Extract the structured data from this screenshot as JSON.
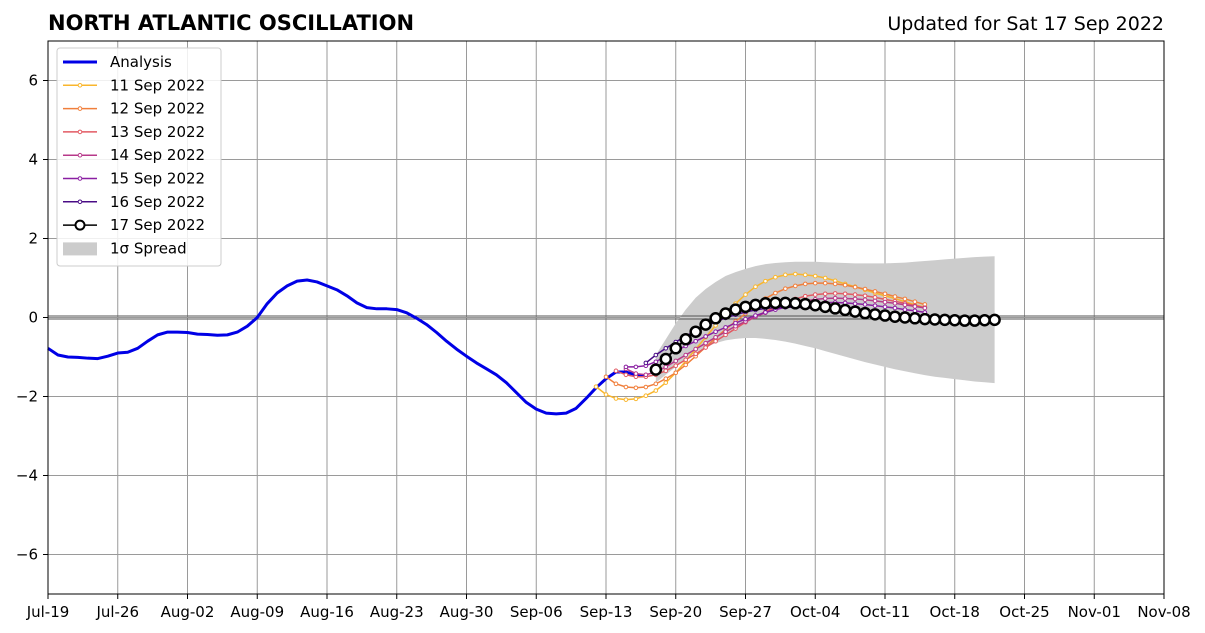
{
  "chart_data": {
    "type": "line",
    "title": "NORTH ATLANTIC OSCILLATION",
    "subtitle": "Updated for Sat 17 Sep 2022",
    "xlabel": "",
    "ylabel": "",
    "x_range": [
      "2022-07-19",
      "2022-11-08"
    ],
    "ylim": [
      -7,
      7
    ],
    "x_tick_labels": [
      "Jul-19",
      "Jul-26",
      "Aug-02",
      "Aug-09",
      "Aug-16",
      "Aug-23",
      "Aug-30",
      "Sep-06",
      "Sep-13",
      "Sep-20",
      "Sep-27",
      "Oct-04",
      "Oct-11",
      "Oct-18",
      "Oct-25",
      "Nov-01",
      "Nov-08"
    ],
    "x_tick_dates": [
      "2022-07-19",
      "2022-07-26",
      "2022-08-02",
      "2022-08-09",
      "2022-08-16",
      "2022-08-23",
      "2022-08-30",
      "2022-09-06",
      "2022-09-13",
      "2022-09-20",
      "2022-09-27",
      "2022-10-04",
      "2022-10-11",
      "2022-10-18",
      "2022-10-25",
      "2022-11-01",
      "2022-11-08"
    ],
    "y_ticks": [
      -6,
      -4,
      -2,
      0,
      2,
      4,
      6
    ],
    "y_tick_labels": [
      "−6",
      "−4",
      "−2",
      "0",
      "2",
      "4",
      "6"
    ],
    "grid": true,
    "legend_position": "top-left",
    "colors": {
      "analysis": "#0000e6",
      "spread": "#cccccc",
      "zero_line": "#555555"
    },
    "analysis": {
      "name": "Analysis",
      "points": [
        [
          "2022-07-19",
          -0.78
        ],
        [
          "2022-07-20",
          -0.95
        ],
        [
          "2022-07-21",
          -1.0
        ],
        [
          "2022-07-22",
          -1.01
        ],
        [
          "2022-07-23",
          -1.03
        ],
        [
          "2022-07-24",
          -1.04
        ],
        [
          "2022-07-25",
          -0.98
        ],
        [
          "2022-07-26",
          -0.9
        ],
        [
          "2022-07-27",
          -0.88
        ],
        [
          "2022-07-28",
          -0.78
        ],
        [
          "2022-07-29",
          -0.6
        ],
        [
          "2022-07-30",
          -0.44
        ],
        [
          "2022-07-31",
          -0.37
        ],
        [
          "2022-08-01",
          -0.37
        ],
        [
          "2022-08-02",
          -0.38
        ],
        [
          "2022-08-03",
          -0.42
        ],
        [
          "2022-08-04",
          -0.43
        ],
        [
          "2022-08-05",
          -0.45
        ],
        [
          "2022-08-06",
          -0.44
        ],
        [
          "2022-08-07",
          -0.37
        ],
        [
          "2022-08-08",
          -0.22
        ],
        [
          "2022-08-09",
          0.0
        ],
        [
          "2022-08-10",
          0.35
        ],
        [
          "2022-08-11",
          0.62
        ],
        [
          "2022-08-12",
          0.8
        ],
        [
          "2022-08-13",
          0.92
        ],
        [
          "2022-08-14",
          0.95
        ],
        [
          "2022-08-15",
          0.9
        ],
        [
          "2022-08-16",
          0.8
        ],
        [
          "2022-08-17",
          0.7
        ],
        [
          "2022-08-18",
          0.55
        ],
        [
          "2022-08-19",
          0.37
        ],
        [
          "2022-08-20",
          0.25
        ],
        [
          "2022-08-21",
          0.22
        ],
        [
          "2022-08-22",
          0.22
        ],
        [
          "2022-08-23",
          0.2
        ],
        [
          "2022-08-24",
          0.12
        ],
        [
          "2022-08-25",
          -0.02
        ],
        [
          "2022-08-26",
          -0.18
        ],
        [
          "2022-08-27",
          -0.38
        ],
        [
          "2022-08-28",
          -0.6
        ],
        [
          "2022-08-29",
          -0.8
        ],
        [
          "2022-08-30",
          -0.98
        ],
        [
          "2022-08-31",
          -1.15
        ],
        [
          "2022-09-01",
          -1.3
        ],
        [
          "2022-09-02",
          -1.45
        ],
        [
          "2022-09-03",
          -1.65
        ],
        [
          "2022-09-04",
          -1.9
        ],
        [
          "2022-09-05",
          -2.15
        ],
        [
          "2022-09-06",
          -2.32
        ],
        [
          "2022-09-07",
          -2.42
        ],
        [
          "2022-09-08",
          -2.44
        ],
        [
          "2022-09-09",
          -2.42
        ],
        [
          "2022-09-10",
          -2.3
        ],
        [
          "2022-09-11",
          -2.05
        ],
        [
          "2022-09-12",
          -1.78
        ],
        [
          "2022-09-13",
          -1.55
        ],
        [
          "2022-09-14",
          -1.38
        ],
        [
          "2022-09-15",
          -1.38
        ],
        [
          "2022-09-16",
          -1.45
        ],
        [
          "2022-09-17",
          -1.48
        ]
      ]
    },
    "series": [
      {
        "name": "11 Sep 2022",
        "color": "#f9b62d",
        "start": "2022-09-12",
        "values": [
          -1.75,
          -1.95,
          -2.05,
          -2.08,
          -2.06,
          -1.98,
          -1.85,
          -1.65,
          -1.4,
          -1.1,
          -0.8,
          -0.5,
          -0.2,
          0.1,
          0.35,
          0.58,
          0.78,
          0.92,
          1.02,
          1.08,
          1.1,
          1.08,
          1.05,
          1.0,
          0.93,
          0.85,
          0.78,
          0.7,
          0.62,
          0.55,
          0.48,
          0.4,
          0.32,
          0.26
        ]
      },
      {
        "name": "12 Sep 2022",
        "color": "#f07f3c",
        "start": "2022-09-13",
        "values": [
          -1.5,
          -1.68,
          -1.76,
          -1.78,
          -1.76,
          -1.68,
          -1.55,
          -1.4,
          -1.2,
          -0.98,
          -0.75,
          -0.52,
          -0.3,
          -0.1,
          0.1,
          0.3,
          0.48,
          0.62,
          0.73,
          0.8,
          0.85,
          0.87,
          0.87,
          0.85,
          0.82,
          0.77,
          0.72,
          0.66,
          0.6,
          0.53,
          0.47,
          0.4,
          0.33
        ]
      },
      {
        "name": "13 Sep 2022",
        "color": "#e25a63",
        "start": "2022-09-14",
        "values": [
          -1.35,
          -1.45,
          -1.5,
          -1.5,
          -1.45,
          -1.35,
          -1.22,
          -1.07,
          -0.92,
          -0.76,
          -0.6,
          -0.44,
          -0.28,
          -0.12,
          0.02,
          0.15,
          0.27,
          0.38,
          0.47,
          0.54,
          0.58,
          0.6,
          0.61,
          0.6,
          0.58,
          0.55,
          0.51,
          0.46,
          0.41,
          0.36,
          0.3,
          0.25
        ]
      },
      {
        "name": "14 Sep 2022",
        "color": "#b7398a",
        "start": "2022-09-15",
        "values": [
          -1.3,
          -1.42,
          -1.45,
          -1.38,
          -1.25,
          -1.1,
          -0.95,
          -0.8,
          -0.65,
          -0.5,
          -0.36,
          -0.22,
          -0.1,
          0.02,
          0.12,
          0.22,
          0.3,
          0.37,
          0.42,
          0.46,
          0.48,
          0.49,
          0.48,
          0.47,
          0.45,
          0.42,
          0.39,
          0.36,
          0.32,
          0.28,
          0.24
        ]
      },
      {
        "name": "15 Sep 2022",
        "color": "#8a1fa2",
        "start": "2022-09-15",
        "values": [
          -1.25,
          -1.25,
          -1.22,
          -1.12,
          -0.98,
          -0.85,
          -0.72,
          -0.6,
          -0.48,
          -0.36,
          -0.25,
          -0.14,
          -0.04,
          0.05,
          0.13,
          0.2,
          0.26,
          0.31,
          0.35,
          0.37,
          0.38,
          0.38,
          0.37,
          0.35,
          0.33,
          0.3,
          0.27,
          0.24,
          0.2,
          0.17,
          0.13
        ]
      },
      {
        "name": "16 Sep 2022",
        "color": "#4a0c86",
        "start": "2022-09-17",
        "values": [
          -1.15,
          -0.95,
          -0.78,
          -0.62,
          -0.47,
          -0.34,
          -0.22,
          -0.11,
          -0.01,
          0.07,
          0.14,
          0.19,
          0.23,
          0.25,
          0.26,
          0.26,
          0.25,
          0.23,
          0.21,
          0.18,
          0.15,
          0.12,
          0.09,
          0.06,
          0.04,
          0.02,
          0.0,
          -0.02,
          -0.03
        ]
      },
      {
        "name": "17 Sep 2022",
        "color": "#000000",
        "start": "2022-09-18",
        "marker": "hollow-circle",
        "values": [
          -1.32,
          -1.05,
          -0.78,
          -0.55,
          -0.36,
          -0.18,
          -0.02,
          0.1,
          0.2,
          0.27,
          0.32,
          0.36,
          0.37,
          0.37,
          0.36,
          0.34,
          0.31,
          0.27,
          0.23,
          0.19,
          0.15,
          0.11,
          0.08,
          0.05,
          0.02,
          0.0,
          -0.02,
          -0.04,
          -0.05,
          -0.06,
          -0.07,
          -0.08,
          -0.08,
          -0.07,
          -0.06
        ]
      }
    ],
    "spread": {
      "name": "1σ Spread",
      "start": "2022-09-18",
      "upper": [
        -0.95,
        -0.55,
        -0.15,
        0.2,
        0.5,
        0.72,
        0.9,
        1.05,
        1.15,
        1.23,
        1.3,
        1.35,
        1.38,
        1.4,
        1.41,
        1.41,
        1.41,
        1.4,
        1.39,
        1.38,
        1.37,
        1.37,
        1.37,
        1.37,
        1.38,
        1.39,
        1.41,
        1.43,
        1.45,
        1.47,
        1.49,
        1.51,
        1.53,
        1.54,
        1.55
      ],
      "lower": [
        -1.65,
        -1.45,
        -1.25,
        -1.05,
        -0.88,
        -0.75,
        -0.65,
        -0.58,
        -0.54,
        -0.52,
        -0.52,
        -0.54,
        -0.57,
        -0.61,
        -0.66,
        -0.72,
        -0.78,
        -0.85,
        -0.92,
        -0.99,
        -1.06,
        -1.13,
        -1.19,
        -1.25,
        -1.31,
        -1.36,
        -1.41,
        -1.46,
        -1.5,
        -1.53,
        -1.56,
        -1.59,
        -1.62,
        -1.64,
        -1.66
      ]
    }
  }
}
